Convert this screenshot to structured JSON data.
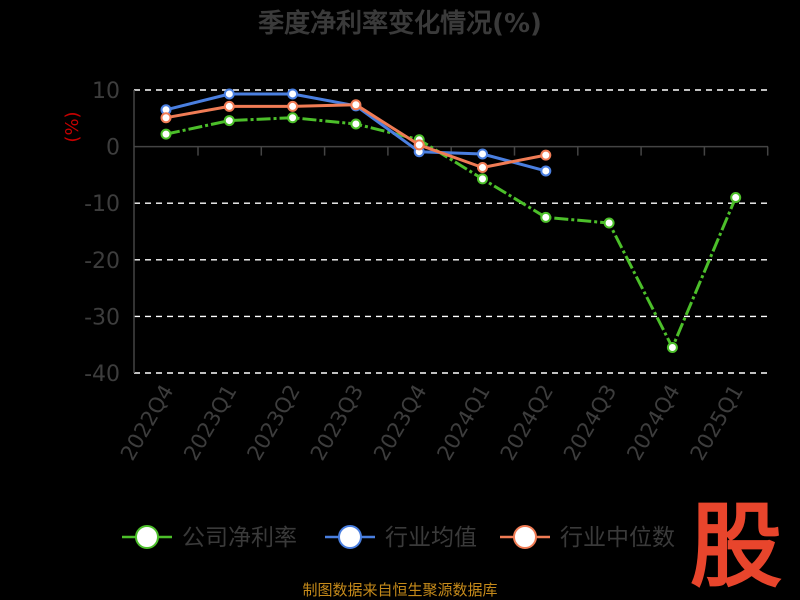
{
  "colors": {
    "background": "#000000",
    "grid": "#ffffff",
    "axis": "#444444",
    "text": "#3d3d3d",
    "ylabel": "#c40000",
    "footer": "#c58a1a",
    "logo": "#e8452c"
  },
  "footer": {
    "text": "制图数据来自恒生聚源数据库"
  },
  "logo": {
    "text": "股"
  },
  "chart_data": {
    "type": "line",
    "title": "季度净利率变化情况(%)",
    "ylabel": "(%)",
    "xlabel": "",
    "ylim": [
      -40,
      10
    ],
    "yticks": [
      10,
      0,
      -10,
      -20,
      -30,
      -40
    ],
    "ytick_labels": [
      "10",
      "0",
      "-10",
      "-20",
      "-30",
      "-40"
    ],
    "grid": true,
    "legend_position": "bottom",
    "categories": [
      "2022Q4",
      "2023Q1",
      "2023Q2",
      "2023Q3",
      "2023Q4",
      "2024Q1",
      "2024Q2",
      "2024Q3",
      "2024Q4",
      "2025Q1"
    ],
    "series": [
      {
        "name": "公司净利率",
        "color": "#4cbf2a",
        "dashed": true,
        "values": [
          2.2,
          4.6,
          5.1,
          4.0,
          1.2,
          -5.7,
          -12.5,
          -13.5,
          -35.5,
          -9.0
        ]
      },
      {
        "name": "行业均值",
        "color": "#4a7fe0",
        "dashed": false,
        "values": [
          6.5,
          9.3,
          9.3,
          7.2,
          -0.9,
          -1.3,
          -4.3,
          null,
          null,
          null
        ]
      },
      {
        "name": "行业中位数",
        "color": "#f07c55",
        "dashed": false,
        "values": [
          5.1,
          7.1,
          7.1,
          7.4,
          0.3,
          -3.7,
          -1.5,
          null,
          null,
          null
        ]
      }
    ]
  }
}
